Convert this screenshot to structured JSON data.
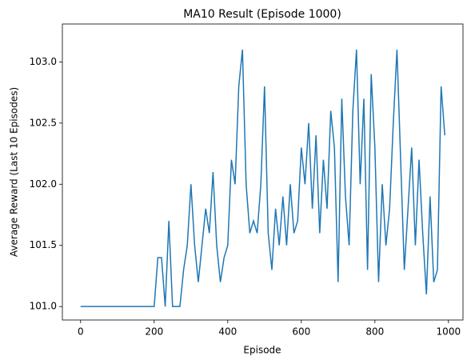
{
  "chart_data": {
    "type": "line",
    "title": "MA10 Result (Episode 1000)",
    "xlabel": "Episode",
    "ylabel": "Average Reward (Last 10 Episodes)",
    "x": [
      0,
      10,
      20,
      30,
      40,
      50,
      60,
      70,
      80,
      90,
      100,
      110,
      120,
      130,
      140,
      150,
      160,
      170,
      180,
      190,
      200,
      210,
      220,
      230,
      240,
      250,
      260,
      270,
      280,
      290,
      300,
      310,
      320,
      330,
      340,
      350,
      360,
      370,
      380,
      390,
      400,
      410,
      420,
      430,
      440,
      450,
      460,
      470,
      480,
      490,
      500,
      510,
      520,
      530,
      540,
      550,
      560,
      570,
      580,
      590,
      600,
      610,
      620,
      630,
      640,
      650,
      660,
      670,
      680,
      690,
      700,
      710,
      720,
      730,
      740,
      750,
      760,
      770,
      780,
      790,
      800,
      810,
      820,
      830,
      840,
      850,
      860,
      870,
      880,
      890,
      900,
      910,
      920,
      930,
      940,
      950,
      960,
      970,
      980,
      990
    ],
    "series": [
      {
        "name": "MA10",
        "color": "#1f77b4",
        "values": [
          101.0,
          101.0,
          101.0,
          101.0,
          101.0,
          101.0,
          101.0,
          101.0,
          101.0,
          101.0,
          101.0,
          101.0,
          101.0,
          101.0,
          101.0,
          101.0,
          101.0,
          101.0,
          101.0,
          101.0,
          101.0,
          101.4,
          101.4,
          101.0,
          101.7,
          101.0,
          101.0,
          101.0,
          101.3,
          101.5,
          102.0,
          101.5,
          101.2,
          101.5,
          101.8,
          101.6,
          102.1,
          101.5,
          101.2,
          101.4,
          101.5,
          102.2,
          102.0,
          102.8,
          103.1,
          102.0,
          101.6,
          101.7,
          101.6,
          102.0,
          102.8,
          101.6,
          101.3,
          101.8,
          101.5,
          101.9,
          101.5,
          102.0,
          101.6,
          101.7,
          102.3,
          102.0,
          102.5,
          101.8,
          102.4,
          101.6,
          102.2,
          101.8,
          102.6,
          102.3,
          101.2,
          102.7,
          101.9,
          101.5,
          102.6,
          103.1,
          102.0,
          102.7,
          101.3,
          102.9,
          102.3,
          101.2,
          102.0,
          101.5,
          101.8,
          102.5,
          103.1,
          102.2,
          101.3,
          101.8,
          102.3,
          101.5,
          102.2,
          101.6,
          101.1,
          101.9,
          101.2,
          101.3,
          102.8,
          102.4
        ]
      }
    ],
    "xlim": [
      -49.5,
      1039.5
    ],
    "ylim": [
      100.89,
      103.31
    ],
    "xticks": [
      0,
      200,
      400,
      600,
      800,
      1000
    ],
    "yticks": [
      {
        "value": 101,
        "label": "101.0"
      },
      101.5,
      {
        "value": 102,
        "label": "102.0"
      },
      102.5,
      {
        "value": 103,
        "label": "103.0"
      }
    ]
  }
}
